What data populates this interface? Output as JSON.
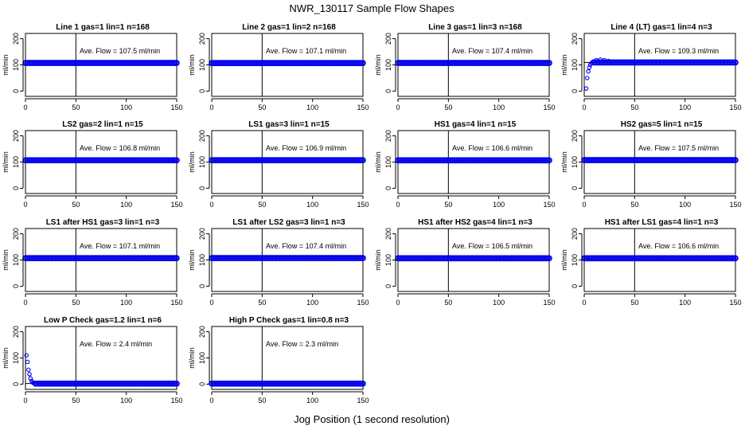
{
  "figure": {
    "title": "NWR_130117  Sample Flow Shapes",
    "xlabel": "Jog Position (1 second resolution)"
  },
  "chart_data": [
    {
      "type": "scatter",
      "title": "Line 1 gas=1 lin=1 n=168",
      "annotation": "Ave. Flow = 107.5  ml/min",
      "ylabel": "ml/min",
      "xlim": [
        0,
        150
      ],
      "ylim": [
        -20,
        220
      ],
      "xticks": [
        0,
        50,
        100,
        150
      ],
      "yticks": [
        0,
        100,
        200
      ],
      "ref_lines": {
        "h": 107.5,
        "v": 50
      },
      "series": [
        {
          "x_start": 0,
          "x_end": 150,
          "y": 107.5,
          "points": []
        }
      ]
    },
    {
      "type": "scatter",
      "title": "Line 2 gas=1 lin=2 n=168",
      "annotation": "Ave. Flow = 107.1  ml/min",
      "ylabel": "ml/min",
      "xlim": [
        0,
        150
      ],
      "ylim": [
        -20,
        220
      ],
      "xticks": [
        0,
        50,
        100,
        150
      ],
      "yticks": [
        0,
        100,
        200
      ],
      "ref_lines": {
        "h": 107.1,
        "v": 50
      },
      "series": [
        {
          "x_start": 0,
          "x_end": 150,
          "y": 107.1,
          "points": []
        }
      ]
    },
    {
      "type": "scatter",
      "title": "Line 3 gas=1 lin=3 n=168",
      "annotation": "Ave. Flow = 107.4  ml/min",
      "ylabel": "ml/min",
      "xlim": [
        0,
        150
      ],
      "ylim": [
        -20,
        220
      ],
      "xticks": [
        0,
        50,
        100,
        150
      ],
      "yticks": [
        0,
        100,
        200
      ],
      "ref_lines": {
        "h": 107.4,
        "v": 50
      },
      "series": [
        {
          "x_start": 0,
          "x_end": 150,
          "y": 107.4,
          "points": []
        }
      ]
    },
    {
      "type": "scatter",
      "title": "Line 4 (LT) gas=1 lin=4 n=3",
      "annotation": "Ave. Flow = 109.3  ml/min",
      "ylabel": "ml/min",
      "xlim": [
        0,
        150
      ],
      "ylim": [
        -20,
        220
      ],
      "xticks": [
        0,
        50,
        100,
        150
      ],
      "yticks": [
        0,
        100,
        200
      ],
      "ref_lines": {
        "h": 109.3,
        "v": 50
      },
      "series": [
        {
          "x_start": 10,
          "x_end": 150,
          "y": 109.3,
          "points": [
            [
              2,
              10
            ],
            [
              3,
              50
            ],
            [
              4,
              75
            ],
            [
              5,
              90
            ],
            [
              6,
              100
            ],
            [
              7,
              106
            ],
            [
              8,
              110
            ],
            [
              9,
              113
            ],
            [
              12,
              118
            ],
            [
              16,
              120
            ],
            [
              20,
              118
            ],
            [
              24,
              115
            ]
          ]
        }
      ]
    },
    {
      "type": "scatter",
      "title": "LS2 gas=2 lin=1 n=15",
      "annotation": "Ave. Flow = 106.8  ml/min",
      "ylabel": "ml/min",
      "xlim": [
        0,
        150
      ],
      "ylim": [
        -20,
        220
      ],
      "xticks": [
        0,
        50,
        100,
        150
      ],
      "yticks": [
        0,
        100,
        200
      ],
      "ref_lines": {
        "h": 106.8,
        "v": 50
      },
      "series": [
        {
          "x_start": 0,
          "x_end": 150,
          "y": 106.8,
          "points": []
        }
      ]
    },
    {
      "type": "scatter",
      "title": "LS1 gas=3 lin=1 n=15",
      "annotation": "Ave. Flow = 106.9  ml/min",
      "ylabel": "ml/min",
      "xlim": [
        0,
        150
      ],
      "ylim": [
        -20,
        220
      ],
      "xticks": [
        0,
        50,
        100,
        150
      ],
      "yticks": [
        0,
        100,
        200
      ],
      "ref_lines": {
        "h": 106.9,
        "v": 50
      },
      "series": [
        {
          "x_start": 0,
          "x_end": 150,
          "y": 106.9,
          "points": []
        }
      ]
    },
    {
      "type": "scatter",
      "title": "HS1 gas=4 lin=1 n=15",
      "annotation": "Ave. Flow = 106.6  ml/min",
      "ylabel": "ml/min",
      "xlim": [
        0,
        150
      ],
      "ylim": [
        -20,
        220
      ],
      "xticks": [
        0,
        50,
        100,
        150
      ],
      "yticks": [
        0,
        100,
        200
      ],
      "ref_lines": {
        "h": 106.6,
        "v": 50
      },
      "series": [
        {
          "x_start": 0,
          "x_end": 150,
          "y": 106.6,
          "points": []
        }
      ]
    },
    {
      "type": "scatter",
      "title": "HS2 gas=5 lin=1 n=15",
      "annotation": "Ave. Flow = 107.5  ml/min",
      "ylabel": "ml/min",
      "xlim": [
        0,
        150
      ],
      "ylim": [
        -20,
        220
      ],
      "xticks": [
        0,
        50,
        100,
        150
      ],
      "yticks": [
        0,
        100,
        200
      ],
      "ref_lines": {
        "h": 107.5,
        "v": 50
      },
      "series": [
        {
          "x_start": 0,
          "x_end": 150,
          "y": 107.5,
          "points": []
        }
      ]
    },
    {
      "type": "scatter",
      "title": "LS1 after HS1 gas=3 lin=1 n=3",
      "annotation": "Ave. Flow = 107.1  ml/min",
      "ylabel": "ml/min",
      "xlim": [
        0,
        150
      ],
      "ylim": [
        -20,
        220
      ],
      "xticks": [
        0,
        50,
        100,
        150
      ],
      "yticks": [
        0,
        100,
        200
      ],
      "ref_lines": {
        "h": 107.1,
        "v": 50
      },
      "series": [
        {
          "x_start": 0,
          "x_end": 150,
          "y": 107.1,
          "points": []
        }
      ]
    },
    {
      "type": "scatter",
      "title": "LS1 after LS2 gas=3 lin=1 n=3",
      "annotation": "Ave. Flow = 107.4  ml/min",
      "ylabel": "ml/min",
      "xlim": [
        0,
        150
      ],
      "ylim": [
        -20,
        220
      ],
      "xticks": [
        0,
        50,
        100,
        150
      ],
      "yticks": [
        0,
        100,
        200
      ],
      "ref_lines": {
        "h": 107.4,
        "v": 50
      },
      "series": [
        {
          "x_start": 0,
          "x_end": 150,
          "y": 107.4,
          "points": []
        }
      ]
    },
    {
      "type": "scatter",
      "title": "HS1 after HS2 gas=4 lin=1 n=3",
      "annotation": "Ave. Flow = 106.5  ml/min",
      "ylabel": "ml/min",
      "xlim": [
        0,
        150
      ],
      "ylim": [
        -20,
        220
      ],
      "xticks": [
        0,
        50,
        100,
        150
      ],
      "yticks": [
        0,
        100,
        200
      ],
      "ref_lines": {
        "h": 106.5,
        "v": 50
      },
      "series": [
        {
          "x_start": 0,
          "x_end": 150,
          "y": 106.5,
          "points": []
        }
      ]
    },
    {
      "type": "scatter",
      "title": "HS1 after LS1 gas=4 lin=1 n=3",
      "annotation": "Ave. Flow = 106.6  ml/min",
      "ylabel": "ml/min",
      "xlim": [
        0,
        150
      ],
      "ylim": [
        -20,
        220
      ],
      "xticks": [
        0,
        50,
        100,
        150
      ],
      "yticks": [
        0,
        100,
        200
      ],
      "ref_lines": {
        "h": 106.6,
        "v": 50
      },
      "series": [
        {
          "x_start": 0,
          "x_end": 150,
          "y": 106.6,
          "points": []
        }
      ]
    },
    {
      "type": "scatter",
      "title": "Low P Check gas=1.2 lin=1 n=6",
      "annotation": "Ave. Flow =  2.4  ml/min",
      "ylabel": "ml/min",
      "xlim": [
        0,
        150
      ],
      "ylim": [
        -20,
        220
      ],
      "xticks": [
        0,
        50,
        100,
        150
      ],
      "yticks": [
        0,
        100,
        200
      ],
      "ref_lines": {
        "h": 2.4,
        "v": 50
      },
      "series": [
        {
          "x_start": 10,
          "x_end": 150,
          "y": 2,
          "points": [
            [
              1,
              110
            ],
            [
              2,
              85
            ],
            [
              3,
              55
            ],
            [
              4,
              38
            ],
            [
              5,
              22
            ],
            [
              6,
              12
            ],
            [
              7,
              7
            ],
            [
              8,
              4
            ]
          ]
        }
      ]
    },
    {
      "type": "scatter",
      "title": "High P Check gas=1 lin=0.8 n=3",
      "annotation": "Ave. Flow =  2.3  ml/min",
      "ylabel": "ml/min",
      "xlim": [
        0,
        150
      ],
      "ylim": [
        -20,
        220
      ],
      "xticks": [
        0,
        50,
        100,
        150
      ],
      "yticks": [
        0,
        100,
        200
      ],
      "ref_lines": {
        "h": 2.3,
        "v": 50
      },
      "series": [
        {
          "x_start": 0,
          "x_end": 150,
          "y": 2,
          "points": []
        }
      ]
    }
  ]
}
